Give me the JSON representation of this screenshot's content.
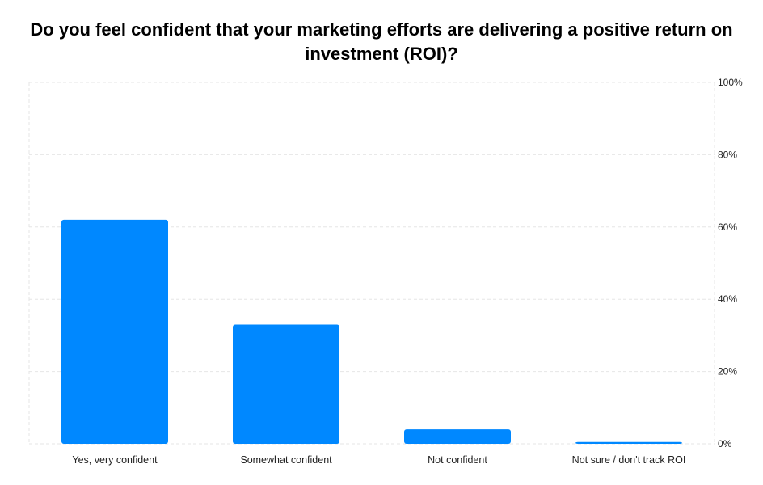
{
  "chart_data": {
    "type": "bar",
    "title": "Do you feel confident that your marketing efforts are delivering a positive return on investment (ROI)?",
    "categories": [
      "Yes, very confident",
      "Somewhat confident",
      "Not confident",
      "Not sure / don't track ROI"
    ],
    "values": [
      62,
      33,
      4,
      0.5
    ],
    "unit": "%",
    "ylim": [
      0,
      100
    ],
    "yticks": [
      0,
      20,
      40,
      60,
      80,
      100
    ],
    "ytick_labels": [
      "0%",
      "20%",
      "40%",
      "60%",
      "80%",
      "100%"
    ],
    "y_axis_side": "right",
    "grid": true,
    "legend": false,
    "bar_color": "#0088ff",
    "grid_color": "#e6e6e6"
  }
}
